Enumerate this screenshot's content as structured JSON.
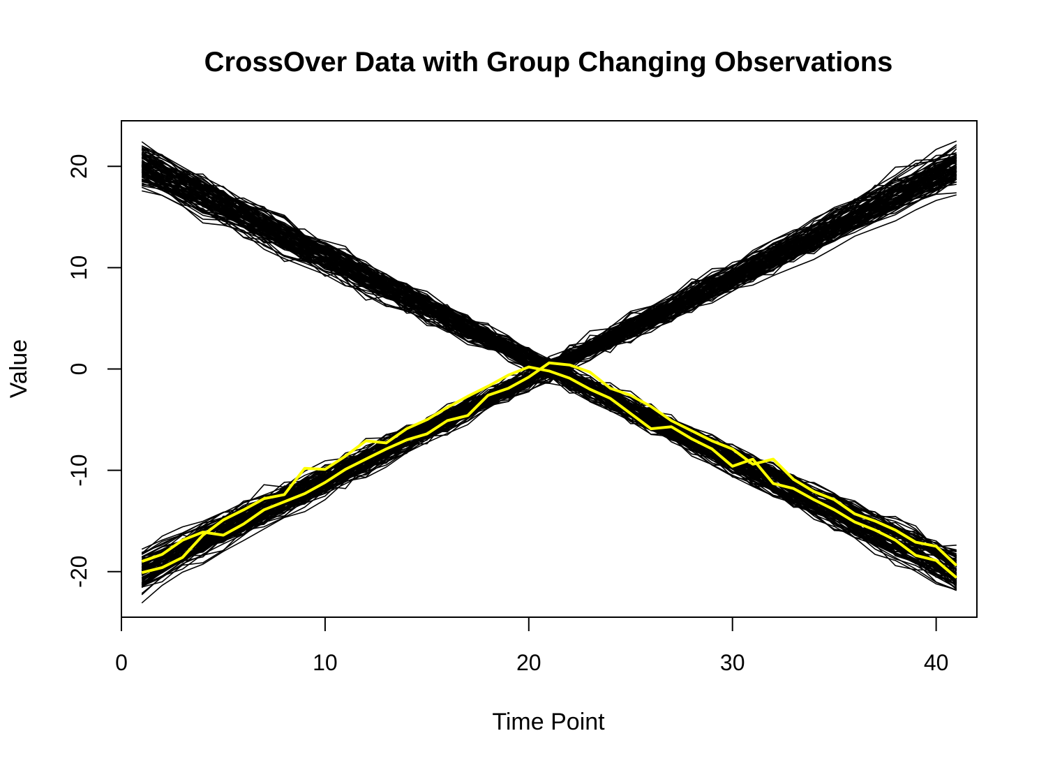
{
  "chart_data": {
    "type": "line",
    "title": "CrossOver Data with Group Changing Observations",
    "xlabel": "Time Point",
    "ylabel": "Value",
    "xlim": [
      0,
      42
    ],
    "ylim": [
      -24.5,
      24.5
    ],
    "x_ticks": [
      0,
      10,
      20,
      30,
      40
    ],
    "y_ticks": [
      -20,
      -10,
      0,
      10,
      20
    ],
    "x_tick_labels": [
      "0",
      "10",
      "20",
      "30",
      "40"
    ],
    "y_tick_labels": [
      "-20",
      "-10",
      "0",
      "10",
      "20"
    ],
    "grid": false,
    "legend": "none",
    "x_values": [
      1,
      2,
      3,
      4,
      5,
      6,
      7,
      8,
      9,
      10,
      11,
      12,
      13,
      14,
      15,
      16,
      17,
      18,
      19,
      20,
      21,
      22,
      23,
      24,
      25,
      26,
      27,
      28,
      29,
      30,
      31,
      32,
      33,
      34,
      35,
      36,
      37,
      38,
      39,
      40,
      41
    ],
    "series_groups": [
      {
        "group": "decreasing",
        "color": "#000000",
        "count": 90,
        "trend_start": 20,
        "trend_end": -20,
        "spread": 2.5
      },
      {
        "group": "increasing",
        "color": "#000000",
        "count": 90,
        "trend_start": -20,
        "trend_end": 20,
        "spread": 2.5
      }
    ],
    "highlighted_series": [
      {
        "color": "#FFFF00",
        "values": [
          -19.0,
          -18.3,
          -16.9,
          -16.1,
          -16.4,
          -15.3,
          -13.9,
          -13.1,
          -12.3,
          -11.2,
          -9.9,
          -8.9,
          -7.9,
          -7.0,
          -6.4,
          -5.1,
          -4.6,
          -2.6,
          -1.9,
          -0.8,
          0.6,
          0.4,
          -0.3,
          -1.9,
          -2.6,
          -3.7,
          -5.1,
          -6.1,
          -7.1,
          -7.9,
          -9.4,
          -8.9,
          -10.9,
          -12.1,
          -12.9,
          -14.3,
          -15.0,
          -15.9,
          -17.1,
          -17.5,
          -19.4
        ]
      },
      {
        "color": "#FFFF00",
        "values": [
          -20.1,
          -19.6,
          -18.6,
          -16.4,
          -14.9,
          -13.9,
          -12.8,
          -12.4,
          -9.8,
          -9.9,
          -8.6,
          -7.1,
          -7.3,
          -5.9,
          -5.0,
          -3.8,
          -2.7,
          -1.7,
          -0.6,
          0.2,
          -0.2,
          -0.9,
          -2.0,
          -2.9,
          -4.4,
          -5.9,
          -5.7,
          -6.9,
          -7.9,
          -9.6,
          -8.9,
          -11.3,
          -11.8,
          -12.9,
          -13.9,
          -15.1,
          -15.9,
          -16.9,
          -18.4,
          -18.9,
          -20.6
        ]
      }
    ]
  }
}
